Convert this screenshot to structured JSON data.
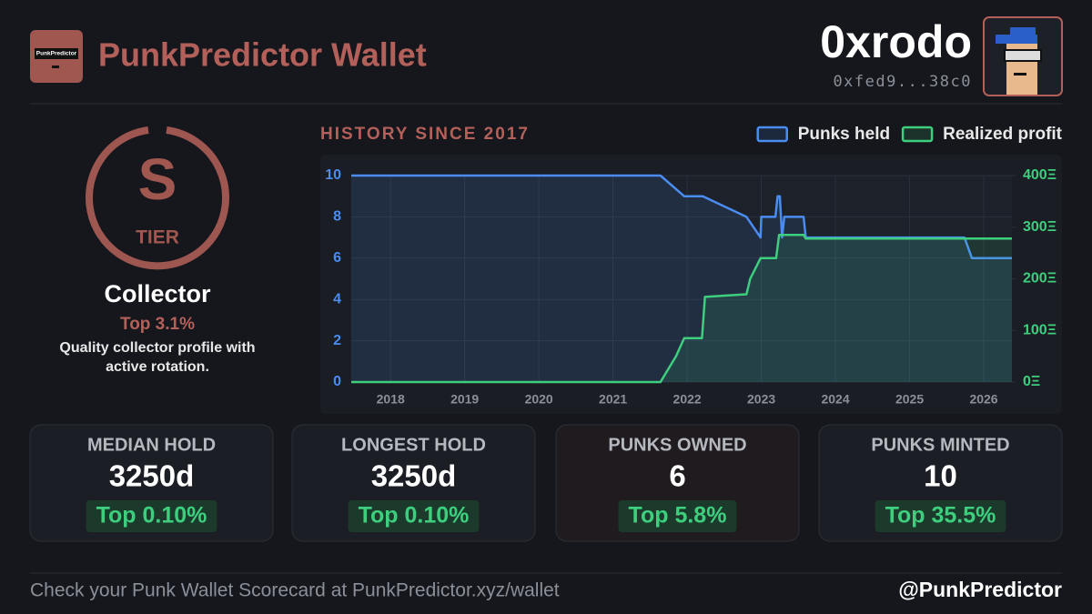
{
  "header": {
    "logo_text": "PunkPredictor",
    "title": "PunkPredictor Wallet",
    "username": "0xrodo",
    "address": "0xfed9...38c0"
  },
  "profile": {
    "tier": "S",
    "tier_label": "TIER",
    "persona": "Collector",
    "rank": "Top 3.1%",
    "description": "Quality collector profile with active rotation."
  },
  "chart_data": {
    "type": "line",
    "title": "HISTORY SINCE 2017",
    "xlim": [
      2017.47,
      2026.38
    ],
    "xticks": [
      2018,
      2019,
      2020,
      2021,
      2022,
      2023,
      2024,
      2025,
      2026
    ],
    "ylim": [
      0,
      10
    ],
    "yticks": [
      0,
      2,
      4,
      6,
      8,
      10
    ],
    "y2lim": [
      0,
      400
    ],
    "y2ticks": [
      {
        "value": 0,
        "label": "0Ξ"
      },
      {
        "value": 100,
        "label": "100Ξ"
      },
      {
        "value": 200,
        "label": "200Ξ"
      },
      {
        "value": 300,
        "label": "300Ξ"
      },
      {
        "value": 400,
        "label": "400Ξ"
      }
    ],
    "grid": true,
    "series": [
      {
        "name": "Punks held",
        "color": "#4a8cf0",
        "axis": "y",
        "x": [
          2017.47,
          2021.64,
          2021.96,
          2022.21,
          2022.8,
          2022.99,
          2023.0,
          2023.19,
          2023.22,
          2023.25,
          2023.28,
          2023.31,
          2023.57,
          2023.6,
          2025.74,
          2025.84,
          2026.38
        ],
        "values": [
          10,
          10,
          9,
          9,
          8,
          7,
          8,
          8,
          9,
          9,
          7,
          8,
          8,
          7,
          7,
          6,
          6
        ]
      },
      {
        "name": "Realized profit",
        "color": "#3ecf7e",
        "axis": "y2",
        "x": [
          2017.47,
          2021.64,
          2021.85,
          2021.96,
          2022.2,
          2022.24,
          2022.8,
          2022.85,
          2022.99,
          2023.2,
          2023.24,
          2023.57,
          2023.6,
          2026.38
        ],
        "values": [
          0,
          0,
          50,
          85,
          85,
          165,
          170,
          200,
          240,
          240,
          285,
          285,
          278,
          278
        ]
      }
    ]
  },
  "stats": [
    {
      "label": "MEDIAN HOLD",
      "value": "3250d",
      "rank": "Top 0.10%"
    },
    {
      "label": "LONGEST HOLD",
      "value": "3250d",
      "rank": "Top 0.10%"
    },
    {
      "label": "PUNKS OWNED",
      "value": "6",
      "rank": "Top 5.8%"
    },
    {
      "label": "PUNKS MINTED",
      "value": "10",
      "rank": "Top 35.5%"
    }
  ],
  "footer": {
    "cta": "Check your Punk Wallet Scorecard at PunkPredictor.xyz/wallet",
    "handle": "@PunkPredictor"
  }
}
